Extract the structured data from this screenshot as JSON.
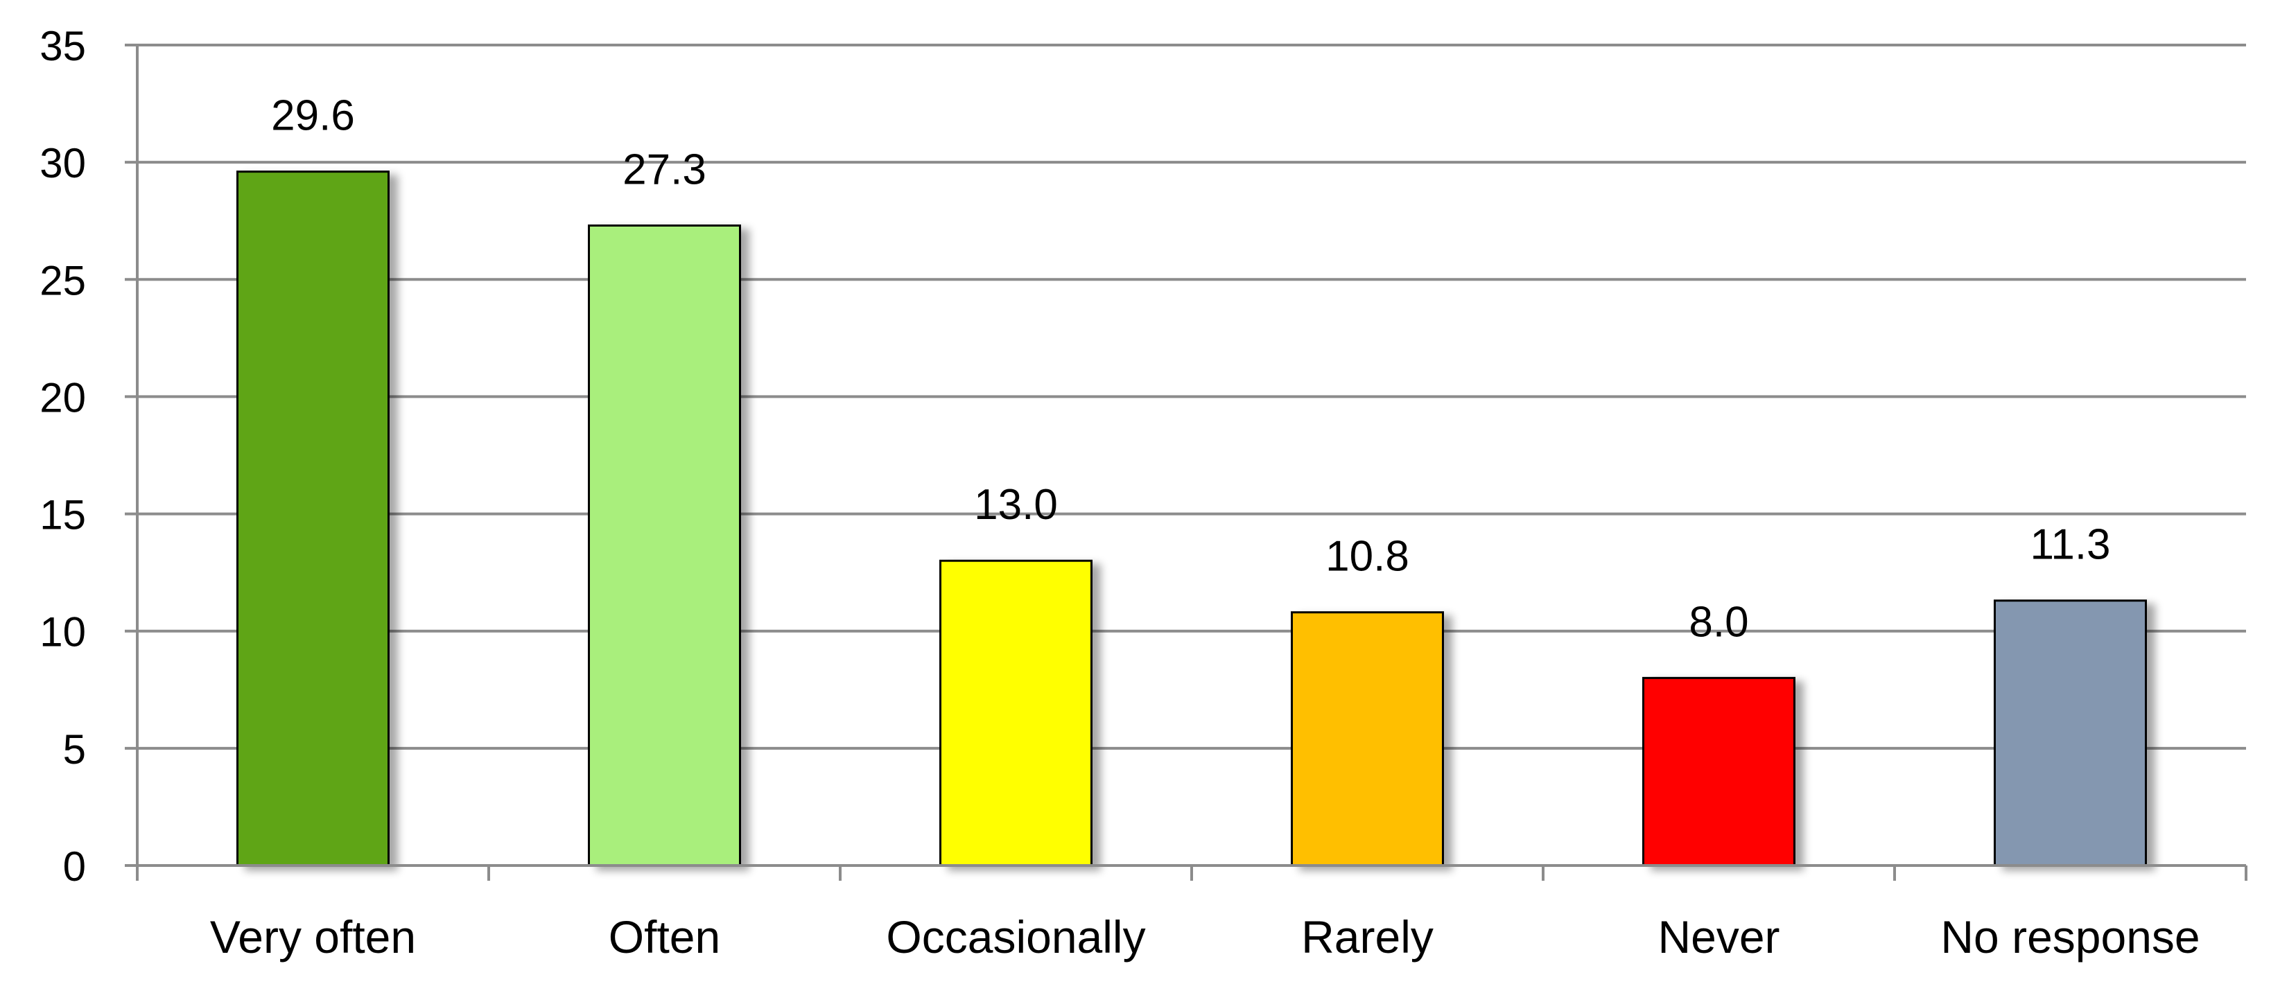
{
  "chart_data": {
    "type": "bar",
    "title": "",
    "xlabel": "",
    "ylabel": "",
    "categories": [
      "Very often",
      "Often",
      "Occasionally",
      "Rarely",
      "Never",
      "No response"
    ],
    "values": [
      29.6,
      27.3,
      13.0,
      10.8,
      8.0,
      11.3
    ],
    "value_labels": [
      "29.6",
      "27.3",
      "13.0",
      "10.8",
      "8.0",
      "11.3"
    ],
    "colors": [
      "#5fa517",
      "#a9ef7c",
      "#ffff00",
      "#ffbf00",
      "#ff0000",
      "#8497b0"
    ],
    "ylim": [
      0,
      35
    ],
    "yticks": [
      0,
      5,
      10,
      15,
      20,
      25,
      30,
      35
    ],
    "grid": true,
    "legend": "none"
  }
}
